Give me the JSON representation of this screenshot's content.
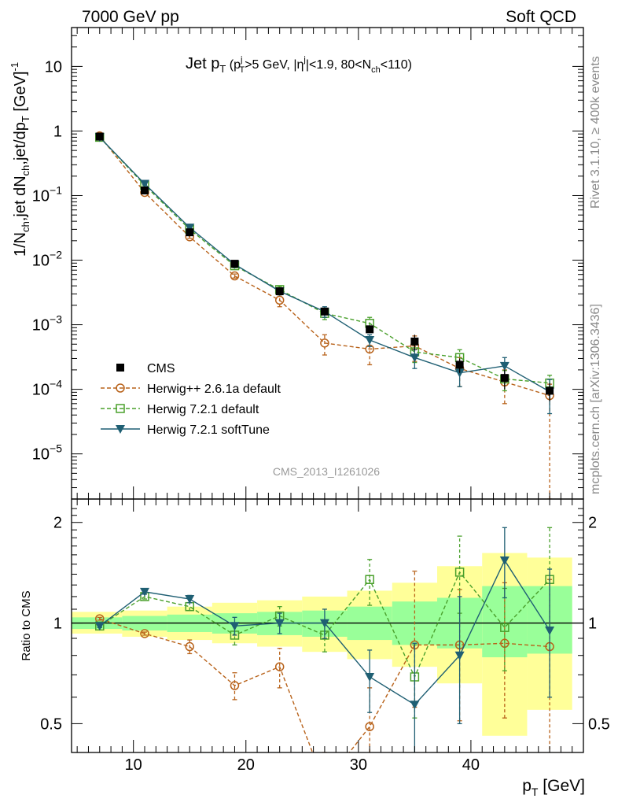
{
  "header": {
    "left_label": "7000 GeV pp",
    "right_label": "Soft QCD"
  },
  "side_labels": {
    "rivet": "Rivet 3.1.10, ≥ 400k events",
    "mcplots": "mcplots.cern.ch [arXiv:1306.3436]"
  },
  "analysis_id": "CMS_2013_I1261026",
  "colors": {
    "cms": "#000000",
    "herwigpp": "#b8621a",
    "herwig_default": "#4aa02c",
    "herwig_softtune": "#1f5f73",
    "band_outer": "#ffff99",
    "band_inner": "#99ff99"
  },
  "chart_data": [
    {
      "type": "line",
      "title_main": "Jet p",
      "title_main_sub": "T",
      "title_cut_p": "p",
      "title_cut_p_sup": "j",
      "title_cut_p_sub": "T",
      "title_cut_rest1": ">5 GeV, |η",
      "title_cut_eta_sup": "j",
      "title_cut_rest2": "|<1.9, 80<N",
      "title_cut_nch_sub": "ch",
      "title_cut_rest3": "<110)",
      "title_cut_open": "(",
      "ylabel_parts": [
        "1/N",
        "ch",
        ",jet dN",
        "ch",
        ",jet/dp",
        "T",
        " [GeV]",
        "-1"
      ],
      "yscale": "log",
      "ylim": [
        2e-06,
        40
      ],
      "xlim": [
        4.5,
        50
      ],
      "y_ticks": [
        {
          "value": 10,
          "label": "10"
        },
        {
          "value": 1,
          "label": "1"
        },
        {
          "value": 0.1,
          "label_base": "10",
          "label_exp": "−1"
        },
        {
          "value": 0.01,
          "label_base": "10",
          "label_exp": "−2"
        },
        {
          "value": 0.001,
          "label_base": "10",
          "label_exp": "−3"
        },
        {
          "value": 0.0001,
          "label_base": "10",
          "label_exp": "−4"
        },
        {
          "value": 1e-05,
          "label_base": "10",
          "label_exp": "−5"
        }
      ],
      "x": [
        7,
        11,
        15,
        19,
        23,
        27,
        31,
        35,
        39,
        43,
        47
      ],
      "cms": {
        "name": "CMS",
        "values": [
          0.82,
          0.12,
          0.027,
          0.0088,
          0.0033,
          0.0016,
          0.00085,
          0.00055,
          0.00024,
          0.00015,
          9.5e-05
        ],
        "err_lo": [
          0.04,
          0.008,
          0.0022,
          0.0008,
          0.0003,
          0.00015,
          0.0001,
          0.00015,
          6e-05,
          5e-05,
          3e-05
        ],
        "err_hi": [
          0.04,
          0.008,
          0.0022,
          0.0008,
          0.0003,
          0.00015,
          0.0001,
          0.00015,
          6e-05,
          5e-05,
          3e-05
        ]
      },
      "series": [
        {
          "name": "Herwig++ 2.6.1a default",
          "marker": "circle",
          "dashed": true,
          "values": [
            0.84,
            0.112,
            0.023,
            0.0057,
            0.0024,
            0.00052,
            0.00042,
            0.00047,
            0.00021,
            0.00013,
            8e-05
          ],
          "err_lo": [
            0.01,
            0.003,
            0.0012,
            0.0004,
            0.0005,
            0.00018,
            0.00018,
            0.0002,
            0.0001,
            7e-05,
            7.95e-05
          ],
          "err_hi": [
            0.01,
            0.003,
            0.0012,
            0.0004,
            0.0005,
            0.00018,
            0.00018,
            0.0002,
            0.0001,
            7e-05,
            4e-05
          ]
        },
        {
          "name": "Herwig 7.2.1 default",
          "marker": "square",
          "dashed": true,
          "values": [
            0.8,
            0.145,
            0.03,
            0.0082,
            0.0035,
            0.0015,
            0.00105,
            0.00038,
            0.00031,
            0.000145,
            0.000125
          ],
          "err_lo": [
            0.01,
            0.003,
            0.0012,
            0.0006,
            0.0004,
            0.0003,
            0.00025,
            0.00012,
            0.0001,
            5e-05,
            4e-05
          ],
          "err_hi": [
            0.01,
            0.003,
            0.0012,
            0.0006,
            0.0004,
            0.0003,
            0.00025,
            0.00012,
            0.0001,
            5e-05,
            4e-05
          ]
        },
        {
          "name": "Herwig 7.2.1 softTune",
          "marker": "triangle-down",
          "dashed": false,
          "values": [
            0.8,
            0.152,
            0.032,
            0.0086,
            0.0033,
            0.0016,
            0.00058,
            0.00031,
            0.00018,
            0.00023,
            9.2e-05
          ],
          "err_lo": [
            0.01,
            0.003,
            0.0012,
            0.0006,
            0.0004,
            0.0003,
            0.00012,
            0.0001,
            7e-05,
            8e-05,
            5e-05
          ],
          "err_hi": [
            0.01,
            0.003,
            0.0012,
            0.0006,
            0.0004,
            0.0003,
            0.00012,
            0.0001,
            7e-05,
            8e-05,
            5e-05
          ]
        }
      ],
      "legend_position": "lower-left"
    },
    {
      "type": "line",
      "ylabel": "Ratio to CMS",
      "xlabel_main": "p",
      "xlabel_sub": "T",
      "xlabel_unit": " [GeV]",
      "yscale": "log",
      "ylim": [
        0.41,
        2.35
      ],
      "xlim": [
        4.5,
        50
      ],
      "x_ticks": [
        10,
        20,
        30,
        40
      ],
      "y_ticks": [
        {
          "value": 0.5,
          "label": "0.5"
        },
        {
          "value": 1,
          "label": "1"
        },
        {
          "value": 2,
          "label": "2"
        }
      ],
      "bins_lo": [
        4.5,
        9,
        13,
        17,
        21,
        25,
        29,
        33,
        37,
        41,
        45
      ],
      "bins_hi": [
        9,
        13,
        17,
        21,
        25,
        29,
        33,
        37,
        41,
        45,
        49
      ],
      "band_inner": [
        [
          0.96,
          1.04
        ],
        [
          0.95,
          1.05
        ],
        [
          0.94,
          1.06
        ],
        [
          0.93,
          1.07
        ],
        [
          0.92,
          1.08
        ],
        [
          0.91,
          1.09
        ],
        [
          0.89,
          1.12
        ],
        [
          0.86,
          1.16
        ],
        [
          0.84,
          1.19
        ],
        [
          0.79,
          1.29
        ],
        [
          0.81,
          1.29
        ]
      ],
      "band_outer": [
        [
          0.93,
          1.08
        ],
        [
          0.91,
          1.09
        ],
        [
          0.89,
          1.12
        ],
        [
          0.87,
          1.15
        ],
        [
          0.85,
          1.17
        ],
        [
          0.82,
          1.2
        ],
        [
          0.78,
          1.25
        ],
        [
          0.74,
          1.32
        ],
        [
          0.66,
          1.48
        ],
        [
          0.46,
          1.62
        ],
        [
          0.55,
          1.57
        ]
      ],
      "series": [
        {
          "name": "Herwig++ 2.6.1a default",
          "marker": "circle",
          "dashed": true,
          "values": [
            1.03,
            0.93,
            0.85,
            0.65,
            0.74,
            0.33,
            0.49,
            0.86,
            0.86,
            0.87,
            0.85
          ],
          "err_lo": [
            0.01,
            0.01,
            0.04,
            0.06,
            0.1,
            0.08,
            0.15,
            0.3,
            0.35,
            0.35,
            0.84
          ],
          "err_hi": [
            0.01,
            0.01,
            0.04,
            0.06,
            0.1,
            0.08,
            0.15,
            0.57,
            0.4,
            0.45,
            0.5
          ]
        },
        {
          "name": "Herwig 7.2.1 default",
          "marker": "square",
          "dashed": true,
          "values": [
            0.98,
            1.2,
            1.12,
            0.92,
            1.05,
            0.92,
            1.35,
            0.69,
            1.42,
            0.97,
            1.35
          ],
          "err_lo": [
            0.01,
            0.02,
            0.03,
            0.06,
            0.07,
            0.1,
            0.22,
            0.17,
            0.35,
            0.25,
            0.4
          ],
          "err_hi": [
            0.01,
            0.02,
            0.03,
            0.06,
            0.07,
            0.1,
            0.2,
            0.17,
            0.4,
            0.3,
            0.58
          ]
        },
        {
          "name": "Herwig 7.2.1 softTune",
          "marker": "triangle-down",
          "dashed": false,
          "values": [
            0.98,
            1.24,
            1.18,
            0.98,
            1.0,
            1.0,
            0.69,
            0.57,
            0.8,
            1.54,
            0.95
          ],
          "err_lo": [
            0.01,
            0.02,
            0.03,
            0.06,
            0.07,
            0.1,
            0.15,
            0.17,
            0.3,
            0.35,
            0.35
          ],
          "err_hi": [
            0.01,
            0.02,
            0.03,
            0.06,
            0.07,
            0.1,
            0.14,
            0.3,
            0.4,
            0.39,
            0.5
          ]
        }
      ]
    }
  ]
}
